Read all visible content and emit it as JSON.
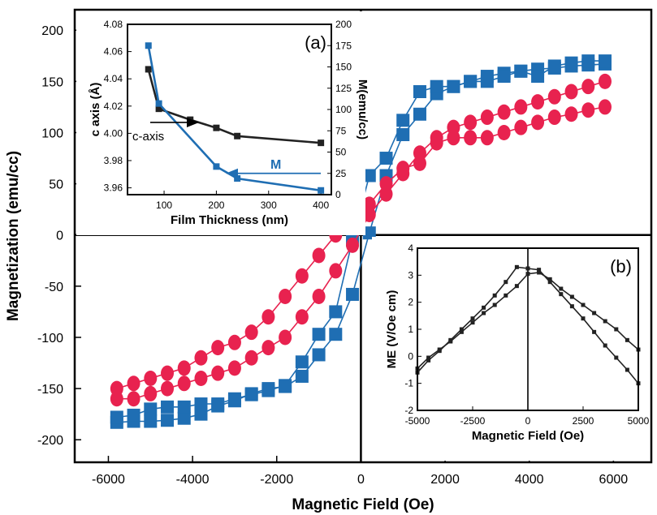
{
  "colors": {
    "blue": "#1f6eb3",
    "red": "#e8224f",
    "dark": "#222222"
  },
  "chart_data": [
    {
      "id": "main",
      "type": "scatter",
      "xlabel": "Magnetic Field (Oe)",
      "ylabel": "Magnetization (emu/cc)",
      "xlim": [
        -6800,
        6900
      ],
      "ylim": [
        -222,
        220
      ],
      "xticks": [
        -6000,
        -4000,
        -2000,
        0,
        2000,
        4000,
        6000
      ],
      "yticks": [
        -200,
        -150,
        -100,
        -50,
        0,
        50,
        100,
        150,
        200
      ],
      "xtick_labels": [
        "-6000",
        "-4000",
        "-2000",
        "0",
        "2000",
        "4000",
        "6000"
      ],
      "ytick_labels": [
        "-200",
        "-150",
        "-100",
        "-50",
        "0",
        "50",
        "100",
        "150",
        "200"
      ],
      "series": [
        {
          "color": "blue",
          "marker": "square",
          "x": [
            -5800,
            -5400,
            -5000,
            -4600,
            -4200,
            -3800,
            -3400,
            -3000,
            -2600,
            -2200,
            -1800,
            -1400,
            -1000,
            -600,
            -200,
            200,
            600,
            1000,
            1400,
            1800,
            2200,
            2600,
            3000,
            3400,
            3800,
            4200,
            4600,
            5000,
            5400,
            5800
          ],
          "y": [
            -183,
            -182,
            -182,
            -181,
            -179,
            -175,
            -167,
            -162,
            -155,
            -150,
            -148,
            -138,
            -117,
            -97,
            -58,
            2,
            58,
            98,
            118,
            138,
            145,
            150,
            155,
            158,
            160,
            162,
            163,
            165,
            166,
            167
          ]
        },
        {
          "color": "blue",
          "marker": "square",
          "x": [
            -5800,
            -5400,
            -5000,
            -4600,
            -4200,
            -3800,
            -3400,
            -3000,
            -2600,
            -2200,
            -1800,
            -1400,
            -1000,
            -600,
            -200,
            200,
            600,
            1000,
            1400,
            1800,
            2200,
            2600,
            3000,
            3400,
            3800,
            4200,
            4600,
            5000,
            5400,
            5800
          ],
          "y": [
            -178,
            -176,
            -170,
            -168,
            -168,
            -165,
            -165,
            -160,
            -156,
            -152,
            -147,
            -124,
            -97,
            -75,
            -5,
            58,
            75,
            112,
            140,
            145,
            145,
            150,
            150,
            155,
            160,
            155,
            165,
            168,
            170,
            170
          ]
        },
        {
          "color": "red",
          "marker": "circle",
          "x": [
            -5800,
            -5400,
            -5000,
            -4600,
            -4200,
            -3800,
            -3400,
            -3000,
            -2600,
            -2200,
            -1800,
            -1400,
            -1000,
            -600,
            -200,
            200,
            600,
            1000,
            1400,
            1800,
            2200,
            2600,
            3000,
            3400,
            3800,
            4200,
            4600,
            5000,
            5400,
            5800
          ],
          "y": [
            -160,
            -160,
            -155,
            -150,
            -145,
            -140,
            -135,
            -130,
            -120,
            -110,
            -100,
            -80,
            -60,
            -35,
            -10,
            20,
            40,
            60,
            80,
            95,
            105,
            110,
            115,
            120,
            125,
            130,
            135,
            140,
            145,
            150
          ]
        },
        {
          "color": "red",
          "marker": "circle",
          "x": [
            -5800,
            -5400,
            -5000,
            -4600,
            -4200,
            -3800,
            -3400,
            -3000,
            -2600,
            -2200,
            -1800,
            -1400,
            -1000,
            -600,
            -200,
            200,
            600,
            1000,
            1400,
            1800,
            2200,
            2600,
            3000,
            3400,
            3800,
            4200,
            4600,
            5000,
            5400,
            5800
          ],
          "y": [
            -150,
            -145,
            -140,
            -135,
            -130,
            -120,
            -110,
            -105,
            -95,
            -80,
            -60,
            -40,
            -20,
            0,
            15,
            30,
            50,
            65,
            70,
            90,
            95,
            95,
            95,
            100,
            105,
            110,
            115,
            118,
            122,
            125
          ]
        }
      ]
    },
    {
      "id": "inset_a",
      "type": "line",
      "label": "(a)",
      "xlabel": "Film Thickness (nm)",
      "ylabel_left": "c axis (Å)",
      "ylabel_right": "M(emu/cc)",
      "xlim": [
        30,
        420
      ],
      "ylim_left": [
        3.955,
        4.08
      ],
      "ylim_right": [
        0,
        200
      ],
      "xticks": [
        100,
        200,
        300,
        400
      ],
      "xtick_labels": [
        "100",
        "200",
        "300",
        "400"
      ],
      "yticks_left": [
        3.96,
        3.98,
        4.0,
        4.02,
        4.04,
        4.06,
        4.08
      ],
      "ytick_labels_left": [
        "3.96",
        "3.98",
        "4.00",
        "4.02",
        "4.04",
        "4.06",
        "4.08"
      ],
      "yticks_right": [
        0,
        25,
        50,
        75,
        100,
        125,
        150,
        175,
        200
      ],
      "ytick_labels_right": [
        "0",
        "25",
        "50",
        "75",
        "100",
        "125",
        "150",
        "175",
        "200"
      ],
      "annotation_c": "c-axis",
      "annotation_m": "M",
      "series": [
        {
          "name": "c-axis",
          "color": "dark",
          "axis": "left",
          "x": [
            70,
            90,
            150,
            200,
            240,
            400
          ],
          "y": [
            4.047,
            4.018,
            4.01,
            4.004,
            3.998,
            3.993
          ]
        },
        {
          "name": "M",
          "color": "blue",
          "axis": "right",
          "x": [
            70,
            90,
            200,
            240,
            400
          ],
          "y": [
            175,
            107,
            33,
            19,
            5
          ]
        }
      ]
    },
    {
      "id": "inset_b",
      "type": "line",
      "label": "(b)",
      "xlabel": "Magnetic Field (Oe)",
      "ylabel": "ME (V/Oe cm)",
      "xlim": [
        -5000,
        5000
      ],
      "ylim": [
        -2,
        4
      ],
      "xticks": [
        -5000,
        -2500,
        0,
        2500,
        5000
      ],
      "xtick_labels": [
        "-5000",
        "-2500",
        "0",
        "2500",
        "5000"
      ],
      "yticks": [
        -2,
        -1,
        0,
        1,
        2,
        3,
        4
      ],
      "ytick_labels": [
        "-2",
        "-1",
        "0",
        "1",
        "2",
        "3",
        "4"
      ],
      "series": [
        {
          "color": "dark",
          "x": [
            -5000,
            -4500,
            -4000,
            -3500,
            -3000,
            -2500,
            -2000,
            -1500,
            -1000,
            -500,
            0,
            500,
            1000,
            1500,
            2000,
            2500,
            3000,
            3500,
            4000,
            4500,
            5000
          ],
          "y": [
            -0.6,
            -0.15,
            0.2,
            0.6,
            1.0,
            1.4,
            1.8,
            2.25,
            2.75,
            3.3,
            3.25,
            3.2,
            2.75,
            2.3,
            1.85,
            1.4,
            0.9,
            0.4,
            -0.05,
            -0.5,
            -1.0
          ]
        },
        {
          "color": "dark",
          "x": [
            -5000,
            -4500,
            -4000,
            -3500,
            -3000,
            -2500,
            -2000,
            -1500,
            -1000,
            -500,
            0,
            500,
            1000,
            1500,
            2000,
            2500,
            3000,
            3500,
            4000,
            4500,
            5000
          ],
          "y": [
            -0.45,
            -0.05,
            0.25,
            0.55,
            0.9,
            1.25,
            1.6,
            1.9,
            2.25,
            2.6,
            3.05,
            3.1,
            2.85,
            2.5,
            2.2,
            1.9,
            1.6,
            1.3,
            1.0,
            0.6,
            0.25
          ]
        }
      ]
    }
  ]
}
